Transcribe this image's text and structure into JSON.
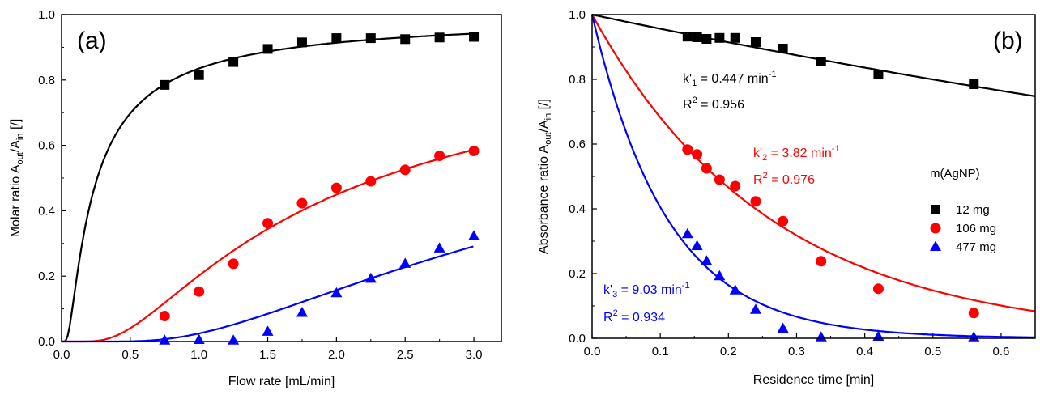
{
  "chart_data": [
    {
      "type": "scatter",
      "panel_label": "(a)",
      "xlabel": "Flow rate [mL/min]",
      "ylabel": {
        "main": "Molar ratio A",
        "sub1": "out",
        "mid": "/A",
        "sub2": "in",
        "tail": " [/]"
      },
      "xlim": [
        0.0,
        3.2
      ],
      "ylim": [
        0.0,
        1.0
      ],
      "xticks": [
        "0.0",
        "0.5",
        "1.0",
        "1.5",
        "2.0",
        "2.5",
        "3.0"
      ],
      "yticks": [
        "0.0",
        "0.2",
        "0.4",
        "0.6",
        "0.8",
        "1.0"
      ],
      "series": [
        {
          "name": "12 mg",
          "color": "#000000",
          "marker": "square",
          "x": [
            0.75,
            1.0,
            1.25,
            1.5,
            1.75,
            2.0,
            2.25,
            2.5,
            2.75,
            3.0
          ],
          "y": [
            0.785,
            0.815,
            0.855,
            0.895,
            0.915,
            0.928,
            0.928,
            0.925,
            0.93,
            0.932
          ]
        },
        {
          "name": "106 mg",
          "color": "#ff0000",
          "marker": "circle",
          "x": [
            0.75,
            1.0,
            1.25,
            1.5,
            1.75,
            2.0,
            2.25,
            2.5,
            2.75,
            3.0
          ],
          "y": [
            0.078,
            0.153,
            0.238,
            0.362,
            0.423,
            0.47,
            0.49,
            0.525,
            0.568,
            0.583
          ]
        },
        {
          "name": "477 mg",
          "color": "#0000ff",
          "marker": "triangle",
          "x": [
            0.75,
            1.0,
            1.25,
            1.5,
            1.75,
            2.0,
            2.25,
            2.5,
            2.75,
            3.0
          ],
          "y": [
            0.003,
            0.005,
            0.003,
            0.03,
            0.088,
            0.148,
            0.192,
            0.238,
            0.285,
            0.322
          ]
        }
      ],
      "fit_curves": [
        {
          "color": "#000000",
          "k": 0.447,
          "from": 0.0
        },
        {
          "color": "#ff0000",
          "k": 3.82,
          "from": 0.0
        },
        {
          "color": "#0000ff",
          "k": 9.03,
          "from": 0.0
        }
      ]
    },
    {
      "type": "scatter",
      "panel_label": "(b)",
      "xlabel": "Residence time [min]",
      "ylabel": {
        "main": "Absorbance ratio A",
        "sub1": "out",
        "mid": "/A",
        "sub2": "in",
        "tail": " [/]"
      },
      "xlim": [
        0.0,
        0.65
      ],
      "ylim": [
        0.0,
        1.0
      ],
      "xticks": [
        "0.0",
        "0.1",
        "0.2",
        "0.3",
        "0.4",
        "0.5",
        "0.6"
      ],
      "yticks": [
        "0.0",
        "0.2",
        "0.4",
        "0.6",
        "0.8",
        "1.0"
      ],
      "legend_title": "m(AgNP)",
      "series": [
        {
          "name": "12 mg",
          "color": "#000000",
          "marker": "square",
          "x": [
            0.14,
            0.154,
            0.168,
            0.187,
            0.21,
            0.24,
            0.28,
            0.336,
            0.42,
            0.56
          ],
          "y": [
            0.932,
            0.93,
            0.925,
            0.928,
            0.928,
            0.915,
            0.895,
            0.855,
            0.815,
            0.785
          ]
        },
        {
          "name": "106 mg",
          "color": "#ff0000",
          "marker": "circle",
          "x": [
            0.14,
            0.154,
            0.168,
            0.187,
            0.21,
            0.24,
            0.28,
            0.336,
            0.42,
            0.56
          ],
          "y": [
            0.583,
            0.568,
            0.525,
            0.49,
            0.47,
            0.423,
            0.362,
            0.238,
            0.153,
            0.078
          ]
        },
        {
          "name": "477 mg",
          "color": "#0000ff",
          "marker": "triangle",
          "x": [
            0.14,
            0.154,
            0.168,
            0.187,
            0.21,
            0.24,
            0.28,
            0.336,
            0.42,
            0.56
          ],
          "y": [
            0.322,
            0.285,
            0.238,
            0.192,
            0.148,
            0.088,
            0.03,
            0.003,
            0.005,
            0.003
          ]
        }
      ],
      "fit_curves": [
        {
          "color": "#000000",
          "k": 0.447
        },
        {
          "color": "#ff0000",
          "k": 3.82
        },
        {
          "color": "#0000ff",
          "k": 9.03
        }
      ],
      "annotations": [
        {
          "color": "#000000",
          "k_label": "k'",
          "k_sub": "1",
          "k_value": " = 0.447 min",
          "k_sup": "-1",
          "r_label": "R",
          "r_sup": "2",
          "r_value": " = 0.956"
        },
        {
          "color": "#ff0000",
          "k_label": "k'",
          "k_sub": "2",
          "k_value": " = 3.82 min",
          "k_sup": "-1",
          "r_label": "R",
          "r_sup": "2",
          "r_value": " = 0.976"
        },
        {
          "color": "#0000ff",
          "k_label": "k'",
          "k_sub": "3",
          "k_value": " = 9.03 min",
          "k_sup": "-1",
          "r_label": "R",
          "r_sup": "2",
          "r_value": " = 0.934"
        }
      ]
    }
  ]
}
